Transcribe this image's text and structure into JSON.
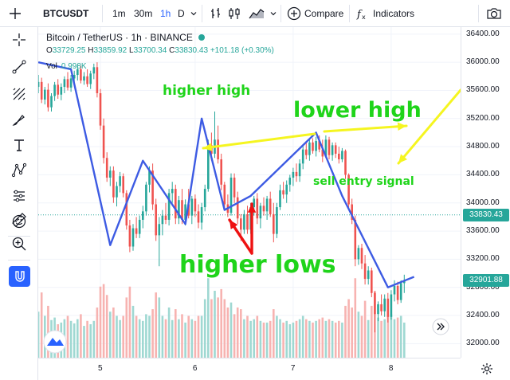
{
  "toolbar": {
    "symbol": "BTCUSDT",
    "intervals": [
      {
        "label": "1m",
        "active": false
      },
      {
        "label": "30m",
        "active": false
      },
      {
        "label": "1h",
        "active": true
      },
      {
        "label": "D",
        "active": false
      }
    ],
    "compare_label": "Compare",
    "indicators_label": "Indicators",
    "icons": [
      "interval-dropdown-icon",
      "bar-style-icon",
      "candles-style-icon",
      "area-style-icon",
      "chart-type-dropdown-icon",
      "compare-plus-icon",
      "indicators-fx-icon",
      "camera-icon"
    ]
  },
  "sidebar": {
    "tools": [
      "crosshair-icon",
      "trend-line-icon",
      "fib-retracement-icon",
      "brush-icon",
      "text-tool-icon",
      "pattern-icon",
      "prediction-icon",
      "emoji-icon",
      "ruler-icon",
      "zoom-in-icon",
      "magnet-icon"
    ]
  },
  "legend": {
    "title": "Bitcoin / TetherUS · 1h · BINANCE",
    "o_label": "O",
    "o_value": "33729.25",
    "h_label": "H",
    "h_value": "33859.92",
    "l_label": "L",
    "l_value": "33700.34",
    "c_label": "C",
    "c_value": "33830.43",
    "change": "+101.18 (+0.30%)",
    "vol_label": "Vol",
    "vol_value": "0.998K"
  },
  "price_axis": {
    "ticks": [
      "36400.00",
      "36000.00",
      "35600.00",
      "35200.00",
      "34800.00",
      "34400.00",
      "34000.00",
      "33600.00",
      "33200.00",
      "32800.00",
      "32400.00",
      "32000.00"
    ],
    "current_label": "33830.43",
    "last_label": "32901.88",
    "current_color": "#26a69a",
    "last_color": "#26a69a"
  },
  "time_axis": {
    "ticks": [
      "5",
      "6",
      "7",
      "8"
    ]
  },
  "annotations": {
    "higher_high": "higher high",
    "lower_high": "lower high",
    "sell_entry": "sell entry signal",
    "higher_lows": "higher lows"
  },
  "colors": {
    "up": "#26a69a",
    "down": "#ef5350",
    "up_volume": "#9fd8d2",
    "down_volume": "#f7b3b1",
    "zigzag": "#3d5be3",
    "annotation_green": "#1fd41a",
    "yellow_arrow": "#f5f520",
    "red_arrow": "#ee1111"
  },
  "chart_data": {
    "type": "candlestick",
    "title": "Bitcoin / TetherUS · 1h · BINANCE",
    "xlabel": "",
    "ylabel": "",
    "ylim": [
      31800,
      36500
    ],
    "x_ticks": [
      "5",
      "6",
      "7",
      "8"
    ],
    "x_tick_index": [
      0,
      29,
      59,
      89
    ],
    "start_index": -19,
    "candles": [
      [
        35650,
        35820,
        35560,
        35720,
        0.55
      ],
      [
        35720,
        35780,
        35420,
        35470,
        0.78
      ],
      [
        35470,
        35650,
        35400,
        35610,
        0.5
      ],
      [
        35610,
        35700,
        35300,
        35360,
        0.62
      ],
      [
        35360,
        35560,
        35300,
        35520,
        0.45
      ],
      [
        35520,
        35720,
        35450,
        35680,
        0.48
      ],
      [
        35680,
        35760,
        35480,
        35540,
        0.4
      ],
      [
        35540,
        35700,
        35460,
        35650,
        0.42
      ],
      [
        35650,
        35800,
        35560,
        35760,
        0.46
      ],
      [
        35760,
        35860,
        35600,
        35640,
        0.5
      ],
      [
        35640,
        35820,
        35580,
        35770,
        0.44
      ],
      [
        35770,
        35880,
        35700,
        35820,
        0.41
      ],
      [
        35820,
        35960,
        35740,
        35900,
        0.46
      ],
      [
        35900,
        35950,
        35700,
        35740,
        0.52
      ],
      [
        35740,
        35860,
        35680,
        35800,
        0.38
      ],
      [
        35800,
        35900,
        35650,
        35690,
        0.44
      ],
      [
        35690,
        35880,
        35620,
        35840,
        0.4
      ],
      [
        35840,
        35980,
        35760,
        35930,
        0.44
      ],
      [
        35930,
        36000,
        35500,
        35560,
        0.6
      ],
      [
        35560,
        35620,
        35040,
        35100,
        0.85
      ],
      [
        35100,
        35200,
        34560,
        34640,
        0.88
      ],
      [
        34640,
        34720,
        34300,
        34360,
        0.75
      ],
      [
        34360,
        34520,
        34240,
        34460,
        0.55
      ],
      [
        34460,
        34520,
        34000,
        34080,
        0.6
      ],
      [
        34080,
        34300,
        33950,
        34240,
        0.5
      ],
      [
        34240,
        34440,
        34150,
        34380,
        0.45
      ],
      [
        34380,
        34420,
        34080,
        34140,
        0.5
      ],
      [
        34140,
        34180,
        33620,
        33680,
        0.72
      ],
      [
        33680,
        33760,
        33300,
        33380,
        0.85
      ],
      [
        33380,
        33700,
        33320,
        33640,
        0.62
      ],
      [
        33640,
        33800,
        33500,
        33560,
        0.5
      ],
      [
        33560,
        33820,
        33500,
        33760,
        0.46
      ],
      [
        33760,
        33960,
        33640,
        33880,
        0.44
      ],
      [
        33880,
        34300,
        33820,
        34260,
        0.52
      ],
      [
        34260,
        34520,
        34150,
        34460,
        0.5
      ],
      [
        34460,
        34560,
        33900,
        33980,
        0.58
      ],
      [
        33980,
        34060,
        33460,
        33540,
        0.78
      ],
      [
        33540,
        33800,
        33100,
        33700,
        0.72
      ],
      [
        33700,
        33900,
        33540,
        33820,
        0.5
      ],
      [
        33820,
        34000,
        33700,
        33760,
        0.46
      ],
      [
        33760,
        34200,
        33680,
        34140,
        0.6
      ],
      [
        34140,
        34300,
        34000,
        34200,
        0.45
      ],
      [
        34200,
        34260,
        33700,
        33780,
        0.58
      ],
      [
        33780,
        34100,
        33700,
        34040,
        0.46
      ],
      [
        34040,
        34200,
        33700,
        33760,
        0.52
      ],
      [
        33760,
        34050,
        33680,
        33980,
        0.42
      ],
      [
        33980,
        34200,
        33780,
        33820,
        0.5
      ],
      [
        33820,
        34100,
        33700,
        34060,
        0.46
      ],
      [
        34060,
        34120,
        33800,
        33880,
        0.44
      ],
      [
        33880,
        33980,
        33640,
        33720,
        0.5
      ],
      [
        33720,
        34000,
        33620,
        33940,
        0.5
      ],
      [
        33940,
        34260,
        33880,
        34200,
        0.7
      ],
      [
        34200,
        34900,
        34160,
        34820,
        0.95
      ],
      [
        34820,
        35000,
        34600,
        34700,
        0.7
      ],
      [
        34700,
        35300,
        34640,
        34900,
        0.8
      ],
      [
        34900,
        35100,
        34560,
        34620,
        0.72
      ],
      [
        34620,
        34700,
        34180,
        34260,
        0.82
      ],
      [
        34260,
        34300,
        33900,
        33980,
        0.7
      ],
      [
        33980,
        34120,
        33800,
        33860,
        0.6
      ],
      [
        33860,
        34420,
        33820,
        34360,
        0.66
      ],
      [
        34360,
        34420,
        34000,
        34080,
        0.52
      ],
      [
        34080,
        34160,
        33700,
        33780,
        0.6
      ],
      [
        33780,
        33840,
        33460,
        33620,
        0.58
      ],
      [
        33620,
        33900,
        33560,
        33840,
        0.46
      ],
      [
        33840,
        33960,
        33560,
        33620,
        0.5
      ],
      [
        33620,
        34000,
        33560,
        33940,
        0.44
      ],
      [
        33940,
        34100,
        33820,
        34060,
        0.46
      ],
      [
        34060,
        34140,
        33700,
        33780,
        0.5
      ],
      [
        33780,
        34000,
        33640,
        33960,
        0.44
      ],
      [
        33960,
        34080,
        33820,
        33880,
        0.42
      ],
      [
        33880,
        34100,
        33760,
        34060,
        0.42
      ],
      [
        34060,
        34160,
        33800,
        33840,
        0.44
      ],
      [
        33840,
        34000,
        33440,
        33560,
        0.58
      ],
      [
        33560,
        34000,
        33500,
        33940,
        0.5
      ],
      [
        33940,
        34260,
        33900,
        34180,
        0.46
      ],
      [
        34180,
        34300,
        34060,
        34120,
        0.42
      ],
      [
        34120,
        34320,
        34000,
        34260,
        0.44
      ],
      [
        34260,
        34400,
        34160,
        34360,
        0.4
      ],
      [
        34360,
        34500,
        34240,
        34440,
        0.42
      ],
      [
        34440,
        34560,
        34300,
        34380,
        0.44
      ],
      [
        34380,
        34620,
        34300,
        34560,
        0.46
      ],
      [
        34560,
        34820,
        34480,
        34760,
        0.5
      ],
      [
        34760,
        34880,
        34620,
        34680,
        0.46
      ],
      [
        34680,
        34900,
        34600,
        34860,
        0.44
      ],
      [
        34860,
        34920,
        34700,
        34740,
        0.42
      ],
      [
        34740,
        34940,
        34660,
        34880,
        0.44
      ],
      [
        34880,
        34960,
        34720,
        34760,
        0.46
      ],
      [
        34760,
        34900,
        34580,
        34660,
        0.48
      ],
      [
        34660,
        34960,
        34640,
        34900,
        0.44
      ],
      [
        34900,
        34940,
        34620,
        34680,
        0.46
      ],
      [
        34680,
        34860,
        34600,
        34820,
        0.44
      ],
      [
        34820,
        34860,
        34640,
        34700,
        0.42
      ],
      [
        34700,
        34800,
        34560,
        34620,
        0.44
      ],
      [
        34620,
        34780,
        34580,
        34740,
        0.42
      ],
      [
        34740,
        34760,
        34340,
        34400,
        0.62
      ],
      [
        34400,
        34420,
        33900,
        33980,
        0.7
      ],
      [
        33980,
        34060,
        33700,
        33760,
        0.6
      ],
      [
        33760,
        33820,
        33100,
        33200,
        0.95
      ],
      [
        33200,
        33400,
        33120,
        33360,
        0.55
      ],
      [
        33360,
        33420,
        33060,
        33140,
        0.5
      ],
      [
        33140,
        33260,
        32840,
        32920,
        0.68
      ],
      [
        32920,
        33100,
        32840,
        33040,
        0.45
      ],
      [
        33040,
        33080,
        32660,
        32720,
        0.62
      ],
      [
        32720,
        32740,
        32160,
        32420,
        0.8
      ],
      [
        32420,
        32600,
        32320,
        32560,
        0.48
      ],
      [
        32560,
        32700,
        32400,
        32460,
        0.44
      ],
      [
        32460,
        32700,
        32380,
        32640,
        0.46
      ],
      [
        32640,
        32720,
        32300,
        32380,
        0.5
      ],
      [
        32380,
        32760,
        32340,
        32700,
        0.52
      ],
      [
        32700,
        32900,
        32600,
        32820,
        0.46
      ],
      [
        32820,
        32880,
        32560,
        32620,
        0.48
      ],
      [
        32620,
        32900,
        32580,
        32860,
        0.5
      ],
      [
        32860,
        32980,
        32720,
        32900,
        0.42
      ]
    ],
    "zigzag": [
      [
        -19,
        36000
      ],
      [
        -9,
        35900
      ],
      [
        3,
        33400
      ],
      [
        13,
        34600
      ],
      [
        26,
        33700
      ],
      [
        31,
        35200
      ],
      [
        38,
        33900
      ],
      [
        46,
        34100
      ],
      [
        66,
        35000
      ],
      [
        74,
        34100
      ],
      [
        88,
        32800
      ],
      [
        96,
        32950
      ]
    ],
    "current_price": 33830.43,
    "last_price": 32901.88
  }
}
